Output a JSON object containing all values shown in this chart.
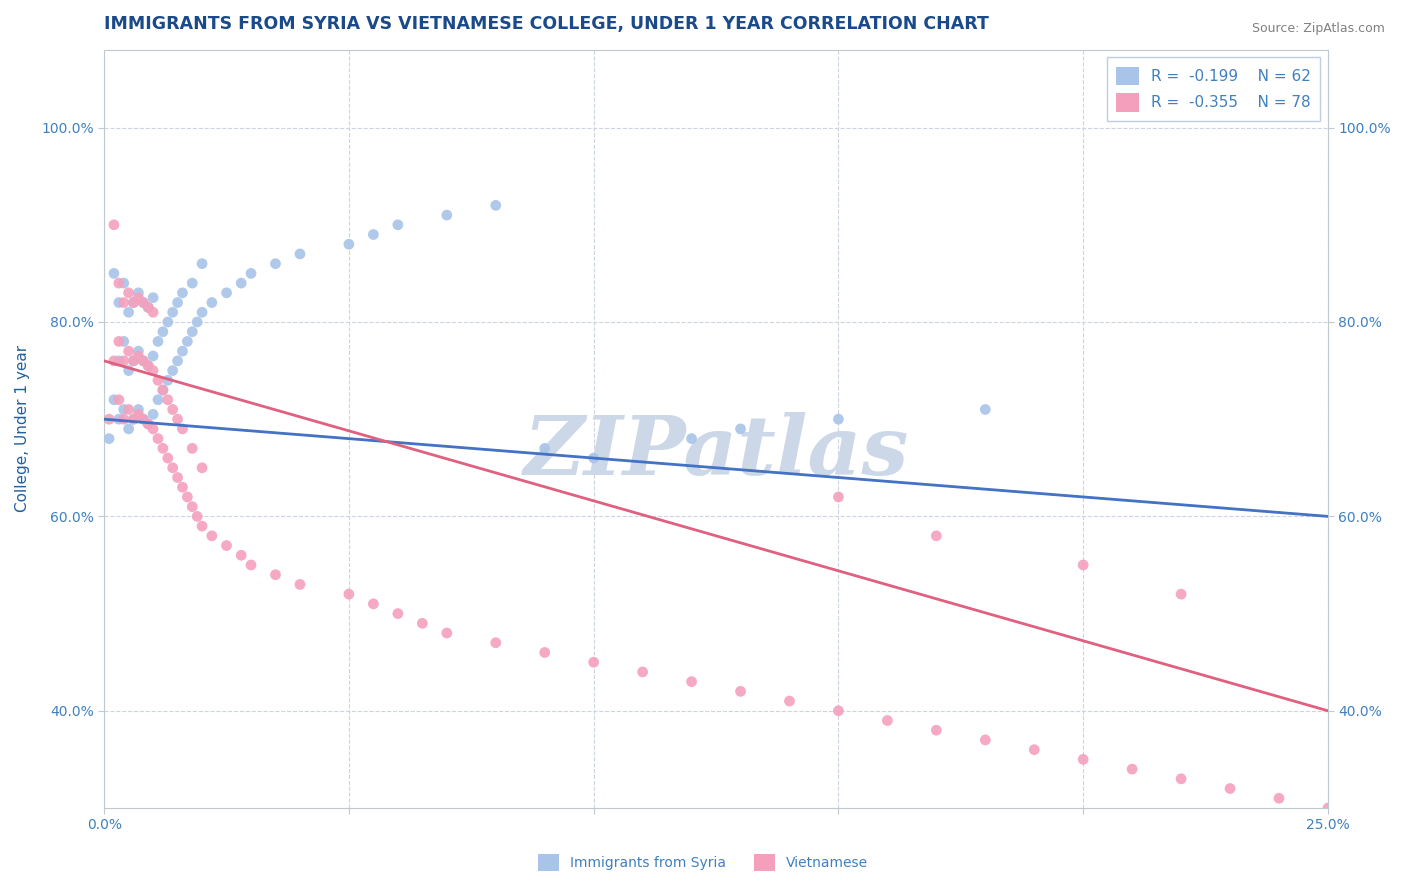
{
  "title": "IMMIGRANTS FROM SYRIA VS VIETNAMESE COLLEGE, UNDER 1 YEAR CORRELATION CHART",
  "source_text": "Source: ZipAtlas.com",
  "xlabel": "",
  "ylabel": "College, Under 1 year",
  "xlim": [
    0.0,
    0.25
  ],
  "ylim": [
    0.3,
    1.08
  ],
  "xticks": [
    0.0,
    0.05,
    0.1,
    0.15,
    0.2,
    0.25
  ],
  "xticklabels": [
    "0.0%",
    "",
    "",
    "",
    "",
    "25.0%"
  ],
  "yticks": [
    0.4,
    0.6,
    0.8,
    1.0
  ],
  "yticklabels": [
    "40.0%",
    "60.0%",
    "80.0%",
    "100.0%"
  ],
  "legend_label1": "R =  -0.199    N = 62",
  "legend_label2": "R =  -0.355    N = 78",
  "series1_color": "#a8c4e8",
  "series2_color": "#f4a0bc",
  "trend1_color": "#4472c4",
  "trend2_color": "#e06080",
  "trend1_dash_color": "#a8c0d8",
  "watermark": "ZIPatlas",
  "watermark_color": "#ccd8e8",
  "background_color": "#ffffff",
  "grid_color": "#ccd4e0",
  "title_color": "#1a4a8a",
  "axis_label_color": "#2060a0",
  "tick_color": "#4080c0",
  "legend_text_color": "#4080c0",
  "title_fontsize": 12.5,
  "axis_label_fontsize": 11,
  "tick_fontsize": 10,
  "legend_fontsize": 11,
  "trend1_y0": 0.7,
  "trend1_y1": 0.6,
  "trend2_y0": 0.76,
  "trend2_y1": 0.4,
  "series1_x": [
    0.001,
    0.002,
    0.002,
    0.003,
    0.003,
    0.003,
    0.004,
    0.004,
    0.004,
    0.005,
    0.005,
    0.005,
    0.006,
    0.006,
    0.006,
    0.007,
    0.007,
    0.007,
    0.008,
    0.008,
    0.008,
    0.009,
    0.009,
    0.009,
    0.01,
    0.01,
    0.01,
    0.011,
    0.011,
    0.012,
    0.012,
    0.013,
    0.013,
    0.014,
    0.014,
    0.015,
    0.015,
    0.016,
    0.016,
    0.017,
    0.018,
    0.018,
    0.019,
    0.02,
    0.02,
    0.022,
    0.025,
    0.028,
    0.03,
    0.035,
    0.04,
    0.05,
    0.055,
    0.06,
    0.07,
    0.08,
    0.09,
    0.1,
    0.12,
    0.13,
    0.15,
    0.18
  ],
  "series1_y": [
    0.68,
    0.72,
    0.85,
    0.7,
    0.76,
    0.82,
    0.71,
    0.78,
    0.84,
    0.69,
    0.75,
    0.81,
    0.7,
    0.76,
    0.82,
    0.71,
    0.77,
    0.83,
    0.7,
    0.76,
    0.82,
    0.695,
    0.755,
    0.815,
    0.705,
    0.765,
    0.825,
    0.72,
    0.78,
    0.73,
    0.79,
    0.74,
    0.8,
    0.75,
    0.81,
    0.76,
    0.82,
    0.77,
    0.83,
    0.78,
    0.79,
    0.84,
    0.8,
    0.81,
    0.86,
    0.82,
    0.83,
    0.84,
    0.85,
    0.86,
    0.87,
    0.88,
    0.89,
    0.9,
    0.91,
    0.92,
    0.67,
    0.66,
    0.68,
    0.69,
    0.7,
    0.71
  ],
  "series2_x": [
    0.001,
    0.002,
    0.002,
    0.003,
    0.003,
    0.003,
    0.004,
    0.004,
    0.004,
    0.005,
    0.005,
    0.005,
    0.006,
    0.006,
    0.006,
    0.007,
    0.007,
    0.007,
    0.008,
    0.008,
    0.008,
    0.009,
    0.009,
    0.009,
    0.01,
    0.01,
    0.01,
    0.011,
    0.011,
    0.012,
    0.012,
    0.013,
    0.013,
    0.014,
    0.014,
    0.015,
    0.015,
    0.016,
    0.016,
    0.017,
    0.018,
    0.018,
    0.019,
    0.02,
    0.02,
    0.022,
    0.025,
    0.028,
    0.03,
    0.035,
    0.04,
    0.05,
    0.055,
    0.06,
    0.065,
    0.07,
    0.08,
    0.09,
    0.1,
    0.11,
    0.12,
    0.13,
    0.14,
    0.15,
    0.16,
    0.17,
    0.18,
    0.19,
    0.2,
    0.21,
    0.22,
    0.23,
    0.24,
    0.25,
    0.15,
    0.17,
    0.2,
    0.22
  ],
  "series2_y": [
    0.7,
    0.76,
    0.9,
    0.72,
    0.78,
    0.84,
    0.7,
    0.76,
    0.82,
    0.71,
    0.77,
    0.83,
    0.7,
    0.76,
    0.82,
    0.705,
    0.765,
    0.825,
    0.7,
    0.76,
    0.82,
    0.695,
    0.755,
    0.815,
    0.69,
    0.75,
    0.81,
    0.68,
    0.74,
    0.67,
    0.73,
    0.66,
    0.72,
    0.65,
    0.71,
    0.64,
    0.7,
    0.63,
    0.69,
    0.62,
    0.61,
    0.67,
    0.6,
    0.59,
    0.65,
    0.58,
    0.57,
    0.56,
    0.55,
    0.54,
    0.53,
    0.52,
    0.51,
    0.5,
    0.49,
    0.48,
    0.47,
    0.46,
    0.45,
    0.44,
    0.43,
    0.42,
    0.41,
    0.4,
    0.39,
    0.38,
    0.37,
    0.36,
    0.35,
    0.34,
    0.33,
    0.32,
    0.31,
    0.3,
    0.62,
    0.58,
    0.55,
    0.52
  ]
}
